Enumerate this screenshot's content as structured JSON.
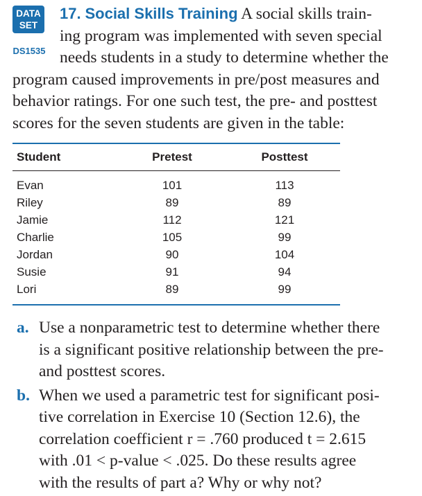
{
  "badge": {
    "line1": "DATA",
    "line2": "SET",
    "id": "DS1535"
  },
  "exercise": {
    "number": "17.",
    "title": "Social Skills Training",
    "lines": [
      "A social skills train-",
      "ing program was implemented with seven special",
      "needs students in a study to determine whether the",
      "program caused improvements in pre/post measures and",
      "behavior ratings. For one such test, the pre- and posttest",
      "scores for the seven students are given in the table:"
    ]
  },
  "table": {
    "headers": [
      "Student",
      "Pretest",
      "Posttest"
    ],
    "rows": [
      [
        "Evan",
        "101",
        "113"
      ],
      [
        "Riley",
        "89",
        "89"
      ],
      [
        "Jamie",
        "112",
        "121"
      ],
      [
        "Charlie",
        "105",
        "99"
      ],
      [
        "Jordan",
        "90",
        "104"
      ],
      [
        "Susie",
        "91",
        "94"
      ],
      [
        "Lori",
        "89",
        "99"
      ]
    ]
  },
  "parts": [
    {
      "label": "a.",
      "lines": [
        "Use a nonparametric test to determine whether there",
        "is a significant positive relationship between the pre-",
        "and posttest scores."
      ]
    },
    {
      "label": "b.",
      "lines": [
        "When we used a parametric test for significant posi-",
        "tive correlation in Exercise 10 (Section 12.6), the",
        "correlation coefficient r = .760 produced t = 2.615",
        "with .01 < p-value < .025. Do these results agree",
        "with the results of part a? Why or why not?"
      ]
    }
  ],
  "colors": {
    "accent": "#1b6fae",
    "text": "#231f20"
  }
}
